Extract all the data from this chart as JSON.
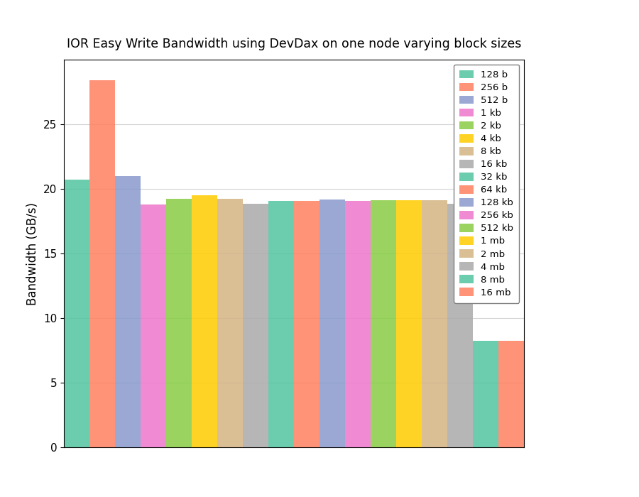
{
  "title": "IOR Easy Write Bandwidth using DevDax on one node varying block sizes",
  "ylabel": "Bandwidth (GB/s)",
  "ylim": [
    0,
    30
  ],
  "categories": [
    "128 b",
    "256 b",
    "512 b",
    "1 kb",
    "2 kb",
    "4 kb",
    "8 kb",
    "16 kb",
    "32 kb",
    "64 kb",
    "128 kb",
    "256 kb",
    "512 kb",
    "1 mb",
    "2 mb",
    "4 mb",
    "8 mb",
    "16 mb"
  ],
  "values": [
    20.7,
    28.4,
    21.0,
    18.8,
    19.25,
    19.5,
    19.25,
    18.85,
    19.05,
    19.05,
    19.2,
    19.05,
    19.1,
    19.1,
    19.1,
    18.85,
    8.25,
    8.25
  ],
  "bar_colors": [
    "#52c4a0",
    "#ff8060",
    "#8899cc",
    "#ee77cc",
    "#88cc44",
    "#ffcc00",
    "#d4b483",
    "#aaaaaa",
    "#52c4a0",
    "#ff8060",
    "#8899cc",
    "#ee77cc",
    "#88cc44",
    "#ffcc00",
    "#d4b483",
    "#aaaaaa",
    "#52c4a0",
    "#ff8060"
  ],
  "legend_labels": [
    "128 b",
    "256 b",
    "512 b",
    "1 kb",
    "2 kb",
    "4 kb",
    "8 kb",
    "16 kb",
    "32 kb",
    "64 kb",
    "128 kb",
    "256 kb",
    "512 kb",
    "1 mb",
    "2 mb",
    "4 mb",
    "8 mb",
    "16 mb"
  ],
  "legend_colors": [
    "#52c4a0",
    "#ff8060",
    "#8899cc",
    "#ee77cc",
    "#88cc44",
    "#ffcc00",
    "#d4b483",
    "#aaaaaa",
    "#52c4a0",
    "#ff8060",
    "#8899cc",
    "#ee77cc",
    "#88cc44",
    "#ffcc00",
    "#d4b483",
    "#aaaaaa",
    "#52c4a0",
    "#ff8060"
  ],
  "yticks": [
    0,
    5,
    10,
    15,
    20,
    25
  ],
  "background_color": "#ffffff"
}
